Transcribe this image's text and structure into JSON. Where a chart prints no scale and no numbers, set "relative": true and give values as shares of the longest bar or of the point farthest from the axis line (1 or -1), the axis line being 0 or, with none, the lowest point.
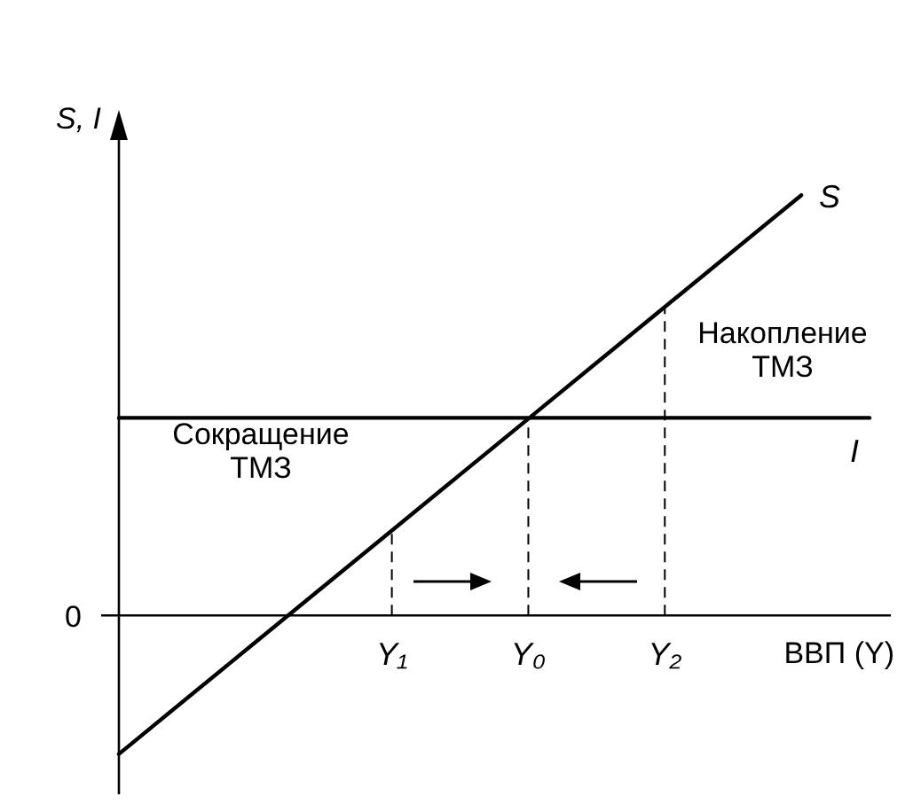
{
  "chart_data": {
    "type": "line",
    "relative": true,
    "xlabel": "ВВП (Y)",
    "ylabel": "S, I",
    "categories": [
      null,
      null,
      null,
      null,
      "Y₁",
      null,
      "Y₀",
      null,
      "Y₂",
      null,
      null,
      null
    ],
    "series": [
      {
        "name": "S",
        "color": "#000000",
        "values": [
          -0.33,
          -0.197,
          -0.064,
          0.069,
          0.202,
          0.335,
          0.468,
          0.601,
          0.734,
          0.867,
          1,
          null
        ]
      },
      {
        "name": "I",
        "color": "#000000",
        "values": [
          0.47,
          0.47,
          0.47,
          0.47,
          0.47,
          0.47,
          0.47,
          0.47,
          0.47,
          0.47,
          0.47,
          0.47
        ]
      }
    ],
    "ref_lines": [
      {
        "axis": "x",
        "value": "Y₁",
        "line_style": "dashed"
      },
      {
        "axis": "x",
        "value": "Y₀",
        "line_style": "dashed"
      },
      {
        "axis": "x",
        "value": "Y₂",
        "line_style": "dashed"
      }
    ],
    "annotations": [
      "Сокращение\nТМЗ",
      "Накопление\nТМЗ",
      "0"
    ],
    "legend": false,
    "grid": false,
    "marker": "none",
    "line_style": "solid"
  }
}
